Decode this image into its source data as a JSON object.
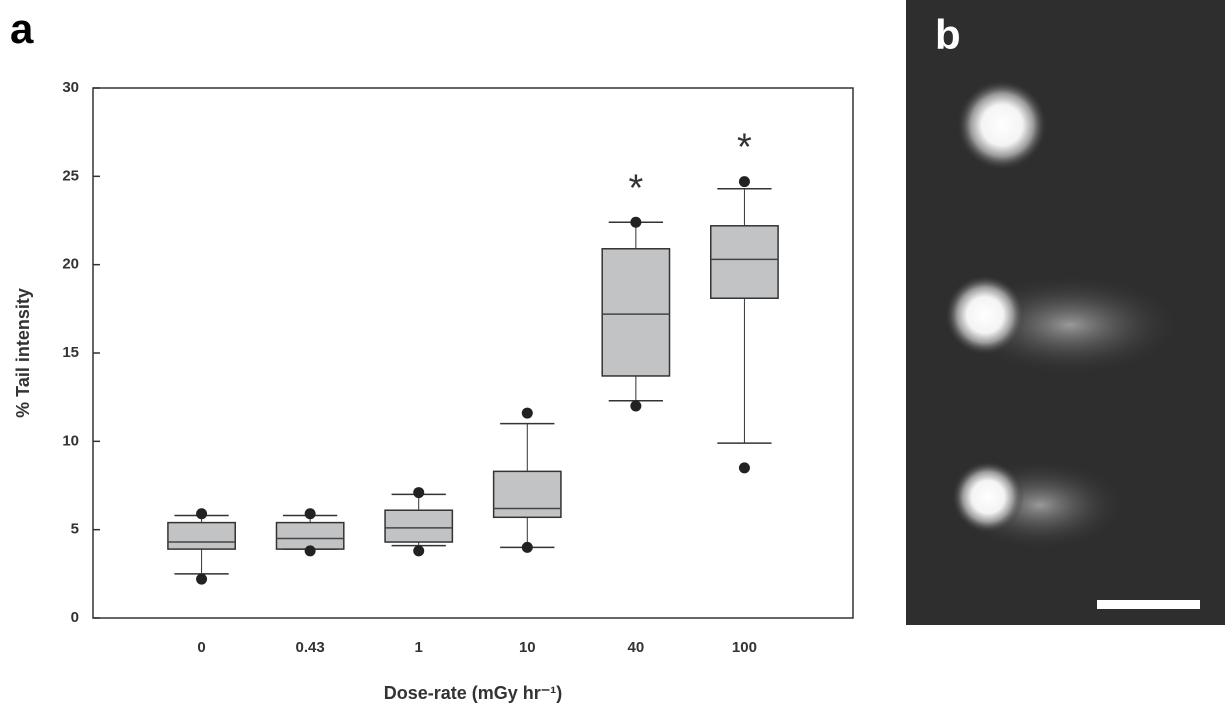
{
  "chart_data": {
    "type": "box",
    "panel_label": "a",
    "x_label": "Dose-rate (mGy hr⁻¹)",
    "y_label": "% Tail intensity",
    "categories": [
      "0",
      "0.43",
      "1",
      "10",
      "40",
      "100"
    ],
    "boxes": [
      {
        "whisker_low": 2.5,
        "q1": 3.9,
        "median": 4.3,
        "q3": 5.4,
        "whisker_high": 5.8,
        "outliers": [
          5.9,
          2.2
        ]
      },
      {
        "whisker_low": 3.9,
        "q1": 3.9,
        "median": 4.5,
        "q3": 5.4,
        "whisker_high": 5.8,
        "outliers": [
          5.9,
          3.8
        ]
      },
      {
        "whisker_low": 4.1,
        "q1": 4.3,
        "median": 5.1,
        "q3": 6.1,
        "whisker_high": 7.0,
        "outliers": [
          7.1,
          3.8
        ]
      },
      {
        "whisker_low": 4.0,
        "q1": 5.7,
        "median": 6.2,
        "q3": 8.3,
        "whisker_high": 11.0,
        "outliers": [
          11.6,
          4.0
        ]
      },
      {
        "whisker_low": 12.3,
        "q1": 13.7,
        "median": 17.2,
        "q3": 20.9,
        "whisker_high": 22.4,
        "outliers": [
          22.4,
          12.0
        ]
      },
      {
        "whisker_low": 9.9,
        "q1": 18.1,
        "median": 20.3,
        "q3": 22.2,
        "whisker_high": 24.3,
        "outliers": [
          24.7,
          8.5
        ]
      }
    ],
    "color": "#c2c3c5",
    "annotations": [
      {
        "category": "40",
        "text": "*"
      },
      {
        "category": "100",
        "text": "*"
      }
    ],
    "ylim": [
      0,
      30
    ],
    "yticks": [
      0,
      5,
      10,
      15,
      20,
      25,
      30
    ]
  },
  "image_panel": {
    "label": "b"
  }
}
